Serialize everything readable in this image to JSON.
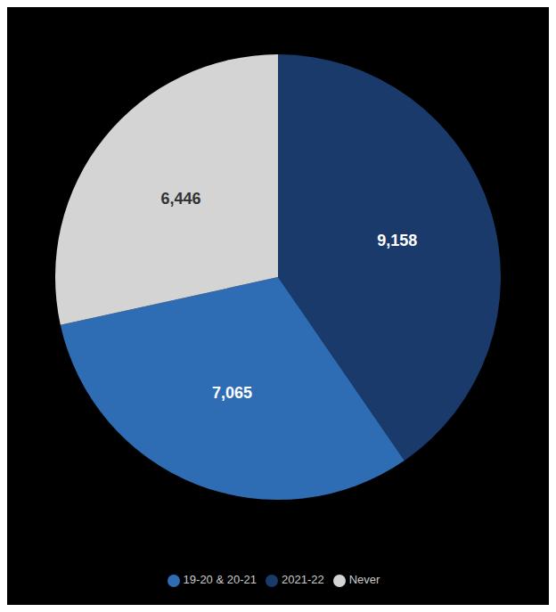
{
  "chart_data": {
    "type": "pie",
    "categories": [
      "2021-22",
      "19-20 & 20-21",
      "Never"
    ],
    "values": [
      9158,
      7065,
      6446
    ],
    "value_labels": [
      "9,158",
      "7,065",
      "6,446"
    ],
    "colors": [
      "#1a3a6b",
      "#2e6db4",
      "#d4d4d4"
    ],
    "data_labels": true,
    "legend": "bottom"
  }
}
